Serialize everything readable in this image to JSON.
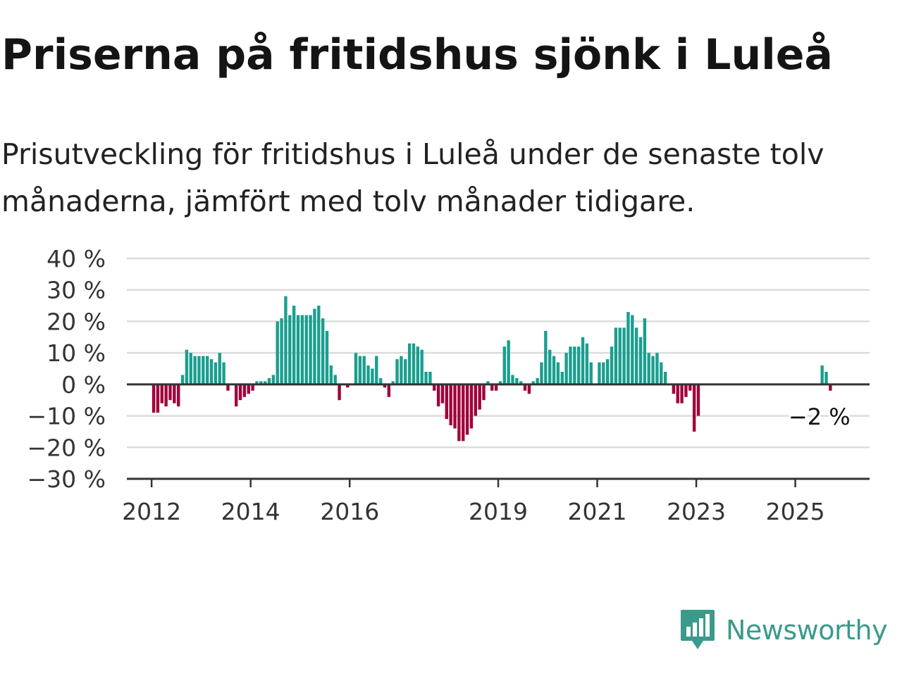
{
  "header": {
    "title": "Priserna på fritidshus sjönk i Luleå",
    "subtitle": "Prisutveckling för fritidshus i Luleå under de senaste tolv månaderna, jämfört med tolv månader tidigare."
  },
  "brand": {
    "name": "Newsworthy",
    "color": "#3a9a8c"
  },
  "chart_data": {
    "type": "bar",
    "x_start": "2012-01",
    "x_end": "2025-12",
    "xlim": [
      "2011-07",
      "2026-07"
    ],
    "ylim": [
      -30,
      40
    ],
    "y_ticks": [
      40,
      30,
      20,
      10,
      0,
      -10,
      -20,
      -30
    ],
    "y_tick_labels": [
      "40 %",
      "30 %",
      "20 %",
      "10 %",
      "0 %",
      "−10 %",
      "−20 %",
      "−30 %"
    ],
    "x_ticks": [
      "2012",
      "2014",
      "2016",
      "2019",
      "2021",
      "2023",
      "2025"
    ],
    "grid": true,
    "positive_color": "#1a9e8f",
    "negative_color": "#a0003c",
    "annotation": {
      "text": "−2 %",
      "x": "2025-07",
      "value": -2
    },
    "values": [
      -9,
      -9,
      -6,
      -7,
      -5,
      -6,
      -7,
      3,
      11,
      10,
      9,
      9,
      9,
      9,
      8,
      7,
      10,
      7,
      -2,
      null,
      -7,
      -5,
      -4,
      -3,
      -2,
      1,
      1,
      1,
      2,
      3,
      20,
      21,
      28,
      22,
      25,
      22,
      22,
      22,
      22,
      24,
      25,
      21,
      17,
      6,
      3,
      -5,
      null,
      -1,
      null,
      10,
      9,
      9,
      6,
      5,
      9,
      2,
      -1,
      -4,
      1,
      8,
      9,
      8,
      13,
      13,
      12,
      11,
      4,
      4,
      -2,
      -7,
      -6,
      -11,
      -13,
      -14,
      -18,
      -18,
      -16,
      -14,
      -10,
      -8,
      -5,
      1,
      -2,
      -2,
      1,
      12,
      14,
      3,
      2,
      1,
      -2,
      -3,
      1,
      2,
      7,
      17,
      11,
      9,
      7,
      4,
      10,
      12,
      12,
      12,
      15,
      13,
      7,
      null,
      7,
      7,
      8,
      12,
      18,
      18,
      18,
      23,
      22,
      18,
      15,
      21,
      10,
      9,
      10,
      7,
      4,
      null,
      -3,
      -6,
      -6,
      -4,
      -2,
      -15,
      -10,
      null,
      null,
      null,
      null,
      null,
      null,
      null,
      null,
      null,
      null,
      null,
      null,
      null,
      null,
      null,
      null,
      null,
      null,
      null,
      null,
      null,
      null,
      null,
      null,
      null,
      null,
      null,
      null,
      null,
      6,
      4,
      -2,
      null,
      null,
      null
    ]
  }
}
